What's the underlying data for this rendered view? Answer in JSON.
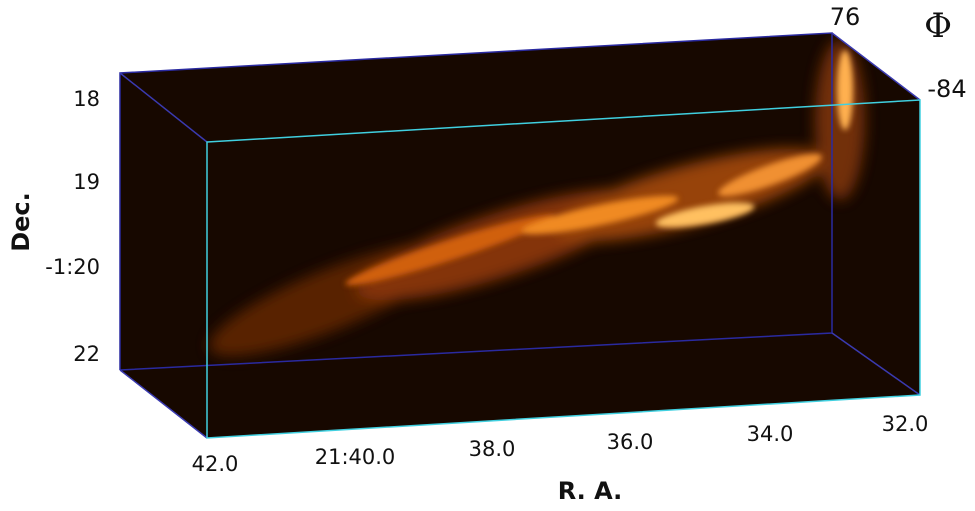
{
  "figure": {
    "y_axis": {
      "label": "Dec.",
      "ticks": [
        "18",
        "19",
        "-1:20",
        "22"
      ]
    },
    "x_axis": {
      "label": "R. A.",
      "ticks": [
        "42.0",
        "21:40.0",
        "38.0",
        "36.0",
        "34.0",
        "32.0"
      ]
    },
    "z_axis": {
      "label": "Φ",
      "ticks": [
        "76",
        "-84"
      ]
    }
  }
}
